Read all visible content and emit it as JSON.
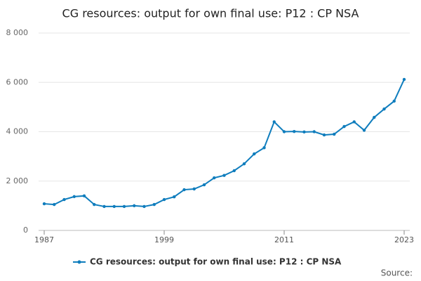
{
  "chart_data": {
    "type": "line",
    "title": "CG resources: output for own final use: P12 : CP NSA",
    "x": [
      1987,
      1988,
      1989,
      1990,
      1991,
      1992,
      1993,
      1994,
      1995,
      1996,
      1997,
      1998,
      1999,
      2000,
      2001,
      2002,
      2003,
      2004,
      2005,
      2006,
      2007,
      2008,
      2009,
      2010,
      2011,
      2012,
      2013,
      2014,
      2015,
      2016,
      2017,
      2018,
      2019,
      2020,
      2021,
      2022,
      2023
    ],
    "series": [
      {
        "name": "CG resources: output for own final use: P12 : CP NSA",
        "color": "#0f7dbd",
        "values": [
          1080,
          1050,
          1250,
          1370,
          1400,
          1050,
          970,
          970,
          970,
          1000,
          970,
          1050,
          1250,
          1360,
          1650,
          1680,
          1850,
          2130,
          2230,
          2420,
          2700,
          3100,
          3350,
          4400,
          4000,
          4010,
          3990,
          4000,
          3870,
          3900,
          4210,
          4400,
          4060,
          4580,
          4920,
          5240,
          6120
        ]
      }
    ],
    "xlim": [
      1987,
      2023
    ],
    "xticks": [
      1987,
      1999,
      2011,
      2023
    ],
    "ylim": [
      0,
      8000
    ],
    "yticks": [
      0,
      {
        "value": 2000,
        "label": "2 000"
      },
      {
        "value": 4000,
        "label": "4 000"
      },
      {
        "value": 6000,
        "label": "6 000"
      },
      {
        "value": 8000,
        "label": "8 000"
      }
    ],
    "grid": true,
    "source_label": "Source:"
  }
}
